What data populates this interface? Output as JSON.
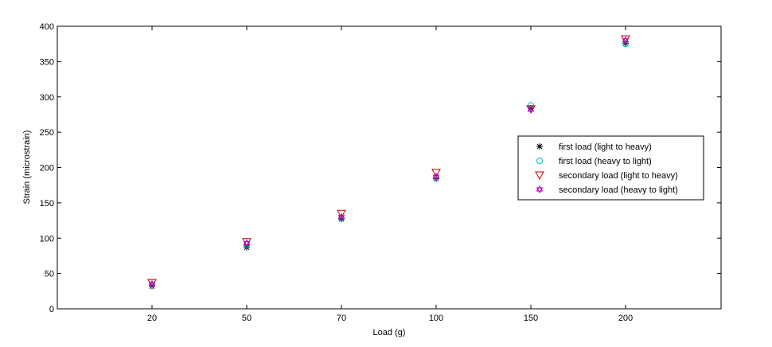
{
  "chart_data": {
    "type": "scatter",
    "xlabel": "Load (g)",
    "ylabel": "Strain (microstrain)",
    "categories": [
      "20",
      "50",
      "70",
      "100",
      "150",
      "200"
    ],
    "ylim": [
      0,
      400
    ],
    "yticks": [
      0,
      50,
      100,
      150,
      200,
      250,
      300,
      350,
      400
    ],
    "grid": false,
    "legend_position": "right",
    "series": [
      {
        "name": "first load (light to heavy)",
        "marker": "asterisk",
        "color": "#000000",
        "values": [
          32,
          87,
          127,
          184,
          284,
          376
        ]
      },
      {
        "name": "first load (heavy to light)",
        "marker": "circle",
        "color": "#00bfbf",
        "values": [
          34,
          91,
          128,
          186,
          288,
          375
        ]
      },
      {
        "name": "secondary load (light to heavy)",
        "marker": "triangle-down",
        "color": "#bf0000",
        "values": [
          37,
          95,
          135,
          193,
          283,
          382
        ]
      },
      {
        "name": "secondary load (heavy to light)",
        "marker": "hexagram",
        "color": "#bf00bf",
        "values": [
          35,
          93,
          130,
          187,
          282,
          380
        ]
      }
    ]
  }
}
